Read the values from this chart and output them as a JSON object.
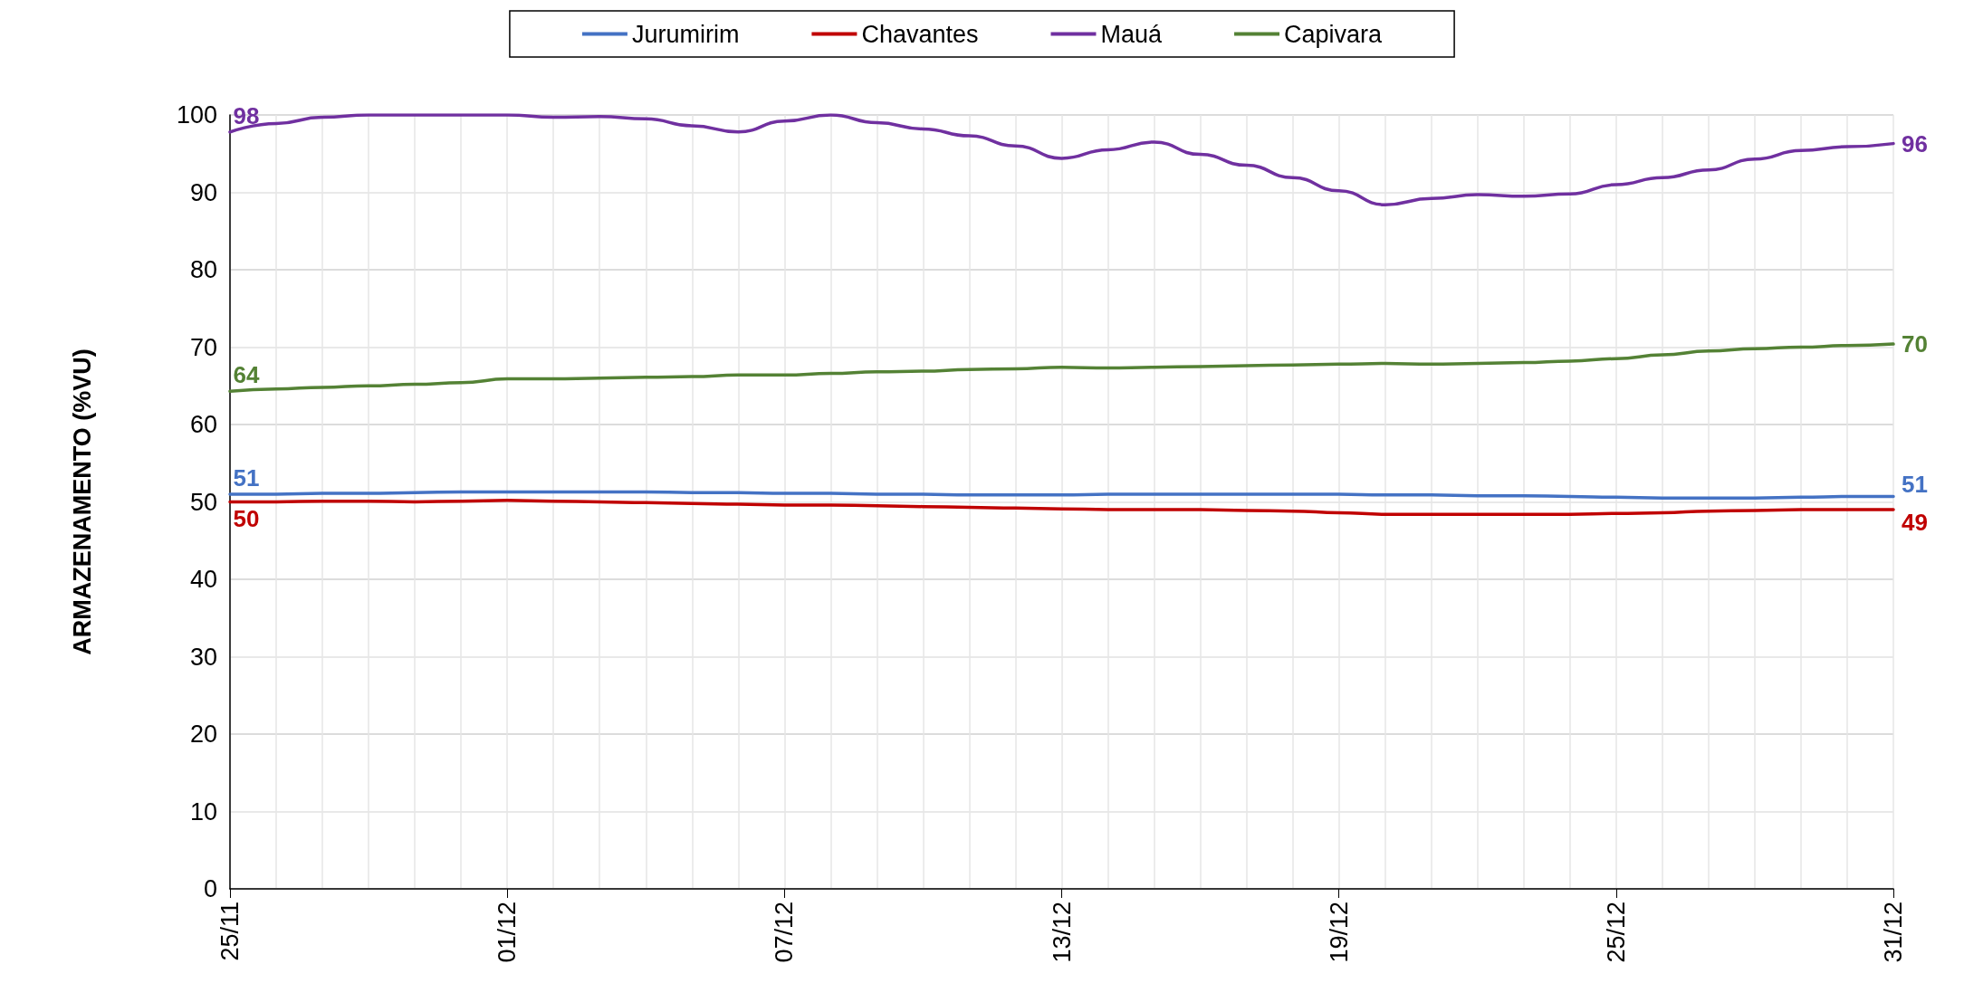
{
  "chart_data": {
    "type": "line",
    "ylabel": "ARMAZENAMENTO (%VU)",
    "categories": [
      "25/11",
      null,
      null,
      null,
      null,
      null,
      "01/12",
      null,
      null,
      null,
      null,
      null,
      "07/12",
      null,
      null,
      null,
      null,
      null,
      "13/12",
      null,
      null,
      null,
      null,
      null,
      "19/12",
      null,
      null,
      null,
      null,
      null,
      "25/12",
      null,
      null,
      null,
      null,
      null,
      "31/12"
    ],
    "series": [
      {
        "name": "Jurumirim",
        "color": "#4472c4",
        "values": [
          51.0,
          51.0,
          51.1,
          51.1,
          51.2,
          51.3,
          51.3,
          51.3,
          51.3,
          51.3,
          51.2,
          51.2,
          51.1,
          51.1,
          51.0,
          51.0,
          50.9,
          50.9,
          50.9,
          51.0,
          51.0,
          51.0,
          51.0,
          51.0,
          51.0,
          50.9,
          50.9,
          50.8,
          50.8,
          50.7,
          50.6,
          50.5,
          50.5,
          50.5,
          50.6,
          50.7,
          50.7
        ],
        "value_labels": [
          "51",
          null,
          null,
          null,
          null,
          null,
          null,
          null,
          null,
          null,
          null,
          null,
          null,
          null,
          null,
          null,
          null,
          null,
          null,
          null,
          null,
          null,
          null,
          null,
          null,
          null,
          null,
          null,
          null,
          null,
          null,
          null,
          null,
          null,
          null,
          null,
          "51"
        ]
      },
      {
        "name": "Chavantes",
        "color": "#c00000",
        "values": [
          50.0,
          50.0,
          50.1,
          50.1,
          50.0,
          50.1,
          50.2,
          50.1,
          50.0,
          49.9,
          49.8,
          49.7,
          49.6,
          49.6,
          49.5,
          49.4,
          49.3,
          49.2,
          49.1,
          49.0,
          49.0,
          49.0,
          48.9,
          48.8,
          48.6,
          48.4,
          48.4,
          48.4,
          48.4,
          48.4,
          48.5,
          48.6,
          48.8,
          48.9,
          49.0,
          49.0,
          49.0
        ],
        "value_labels": [
          "50",
          null,
          null,
          null,
          null,
          null,
          null,
          null,
          null,
          null,
          null,
          null,
          null,
          null,
          null,
          null,
          null,
          null,
          null,
          null,
          null,
          null,
          null,
          null,
          null,
          null,
          null,
          null,
          null,
          null,
          null,
          null,
          null,
          null,
          null,
          null,
          "49"
        ]
      },
      {
        "name": "Mauá",
        "color": "#7030a0",
        "values": [
          97.8,
          98.9,
          99.7,
          100,
          100,
          100,
          100,
          99.7,
          99.8,
          99.5,
          98.6,
          97.8,
          99.2,
          100,
          99.0,
          98.2,
          97.3,
          96.0,
          94.4,
          95.5,
          96.5,
          94.9,
          93.5,
          91.9,
          90.2,
          88.4,
          89.2,
          89.7,
          89.5,
          89.8,
          91.0,
          91.9,
          92.9,
          94.3,
          95.4,
          95.9,
          96.3
        ],
        "value_labels": [
          "98",
          null,
          null,
          null,
          null,
          null,
          null,
          null,
          null,
          null,
          null,
          null,
          null,
          null,
          null,
          null,
          null,
          null,
          null,
          null,
          null,
          null,
          null,
          null,
          null,
          null,
          null,
          null,
          null,
          null,
          null,
          null,
          null,
          null,
          null,
          null,
          "96"
        ]
      },
      {
        "name": "Capivara",
        "color": "#548235",
        "values": [
          64.3,
          64.6,
          64.8,
          65.0,
          65.2,
          65.4,
          65.9,
          65.9,
          66.0,
          66.1,
          66.2,
          66.4,
          66.4,
          66.6,
          66.8,
          66.9,
          67.1,
          67.2,
          67.4,
          67.3,
          67.4,
          67.5,
          67.6,
          67.7,
          67.8,
          67.9,
          67.8,
          67.9,
          68.0,
          68.2,
          68.5,
          69.0,
          69.5,
          69.8,
          70.0,
          70.2,
          70.4
        ],
        "value_labels": [
          "64",
          null,
          null,
          null,
          null,
          null,
          null,
          null,
          null,
          null,
          null,
          null,
          null,
          null,
          null,
          null,
          null,
          null,
          null,
          null,
          null,
          null,
          null,
          null,
          null,
          null,
          null,
          null,
          null,
          null,
          null,
          null,
          null,
          null,
          null,
          null,
          "70"
        ]
      }
    ],
    "ylim": [
      0,
      100
    ],
    "yticks": [
      0,
      10,
      20,
      30,
      40,
      50,
      60,
      70,
      80,
      90,
      100
    ],
    "grid": true,
    "legend": "top",
    "marker": "none",
    "line_style": "solid"
  }
}
